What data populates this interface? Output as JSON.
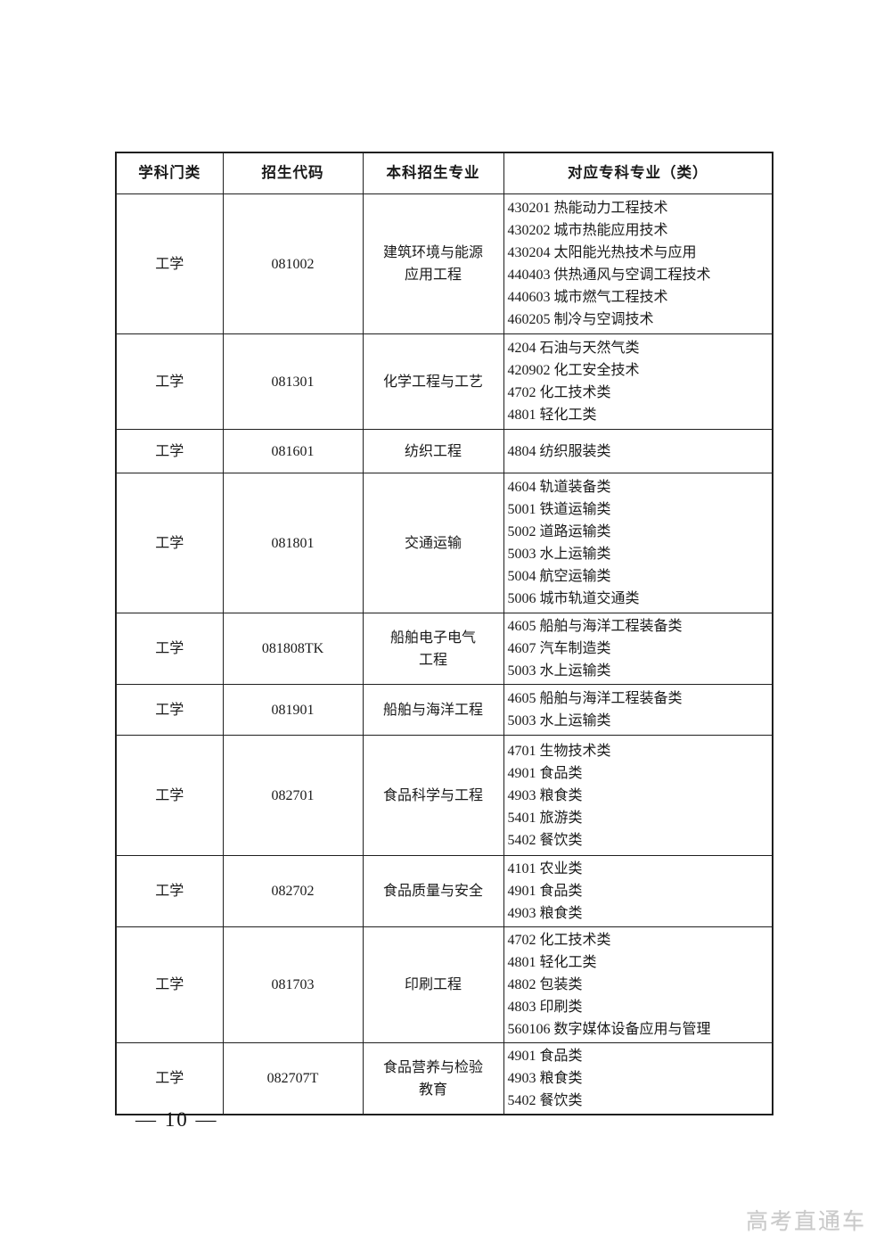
{
  "colors": {
    "table_border": "#1f1f1f",
    "text": "#1a1a1a",
    "watermark_gray": "#c9c9c9",
    "page_background": "#ffffff"
  },
  "page": {
    "footer_page_number": "— 10 —",
    "watermark": "高考直通车"
  },
  "table": {
    "headers": [
      "学科门类",
      "招生代码",
      "本科招生专业",
      "对应专科专业（类）"
    ],
    "rows": [
      {
        "category": "工学",
        "code": "081002",
        "major_lines": [
          "建筑环境与能源",
          "应用工程"
        ],
        "specialties": [
          "430201 热能动力工程技术",
          "430202 城市热能应用技术",
          "430204 太阳能光热技术与应用",
          "440403 供热通风与空调工程技术",
          "440603 城市燃气工程技术",
          "460205 制冷与空调技术"
        ]
      },
      {
        "category": "工学",
        "code": "081301",
        "major_lines": [
          "化学工程与工艺"
        ],
        "specialties": [
          "4204 石油与天然气类",
          "420902 化工安全技术",
          "4702 化工技术类",
          "4801 轻化工类"
        ]
      },
      {
        "category": "工学",
        "code": "081601",
        "major_lines": [
          "纺织工程"
        ],
        "specialties": [
          "4804 纺织服装类"
        ]
      },
      {
        "category": "工学",
        "code": "081801",
        "major_lines": [
          "交通运输"
        ],
        "specialties": [
          "4604 轨道装备类",
          "5001 铁道运输类",
          "5002 道路运输类",
          "5003 水上运输类",
          "5004 航空运输类",
          "5006 城市轨道交通类"
        ]
      },
      {
        "category": "工学",
        "code": "081808TK",
        "major_lines": [
          "船舶电子电气",
          "工程"
        ],
        "specialties": [
          "4605 船舶与海洋工程装备类",
          "4607 汽车制造类",
          "5003 水上运输类"
        ]
      },
      {
        "category": "工学",
        "code": "081901",
        "major_lines": [
          "船舶与海洋工程"
        ],
        "specialties": [
          "4605 船舶与海洋工程装备类",
          "5003 水上运输类"
        ]
      },
      {
        "category": "工学",
        "code": "082701",
        "major_lines": [
          "食品科学与工程"
        ],
        "specialties": [
          "4701 生物技术类",
          "4901 食品类",
          "4903 粮食类",
          "5401 旅游类",
          "5402 餐饮类"
        ]
      },
      {
        "category": "工学",
        "code": "082702",
        "major_lines": [
          "食品质量与安全"
        ],
        "specialties": [
          "4101 农业类",
          "4901 食品类",
          "4903 粮食类"
        ]
      },
      {
        "category": "工学",
        "code": "081703",
        "major_lines": [
          "印刷工程"
        ],
        "specialties": [
          "4702 化工技术类",
          "4801 轻化工类",
          "4802 包装类",
          "4803 印刷类",
          "560106 数字媒体设备应用与管理"
        ]
      },
      {
        "category": "工学",
        "code": "082707T",
        "major_lines": [
          "食品营养与检验",
          "教育"
        ],
        "specialties": [
          "4901 食品类",
          "4903 粮食类",
          "5402 餐饮类"
        ]
      }
    ]
  }
}
